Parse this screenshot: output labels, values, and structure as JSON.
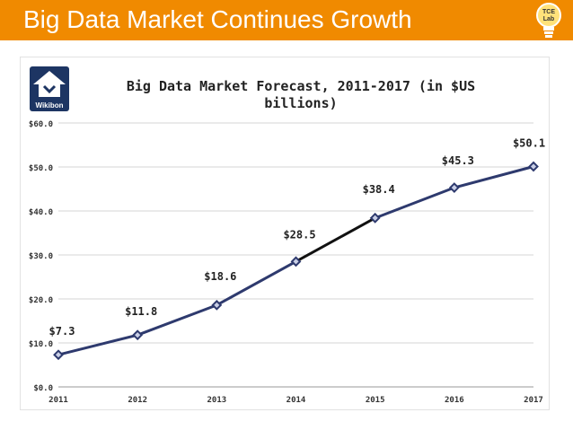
{
  "slide": {
    "title": "Big Data Market Continues Growth",
    "badge_text_top": "TCE",
    "badge_text_bottom": "Lab",
    "accent_color": "#f08a00"
  },
  "logo": {
    "name": "Wikibon"
  },
  "chart_data": {
    "type": "line",
    "title_line1": "Big Data Market Forecast, 2011-2017 (in $US",
    "title_line2": "billions)",
    "x": [
      2011,
      2012,
      2013,
      2014,
      2015,
      2016,
      2017
    ],
    "x_labels": [
      "2011",
      "2012",
      "2013",
      "2014",
      "2015",
      "2016",
      "2017"
    ],
    "values": [
      7.3,
      11.8,
      18.6,
      28.5,
      38.4,
      45.3,
      50.1
    ],
    "data_labels": [
      "$7.3",
      "$11.8",
      "$18.6",
      "$28.5",
      "$38.4",
      "$45.3",
      "$50.1"
    ],
    "y_ticks": [
      0,
      10,
      20,
      30,
      40,
      50,
      60
    ],
    "y_tick_labels": [
      "$0.0",
      "$10.0",
      "$20.0",
      "$30.0",
      "$40.0",
      "$50.0",
      "$60.0"
    ],
    "ylim": [
      0,
      60
    ],
    "grid": true,
    "highlight_segment": [
      2014,
      2015
    ],
    "line_color": "#2e3a6e",
    "highlight_color": "#111111",
    "xlabel": "",
    "ylabel": ""
  }
}
